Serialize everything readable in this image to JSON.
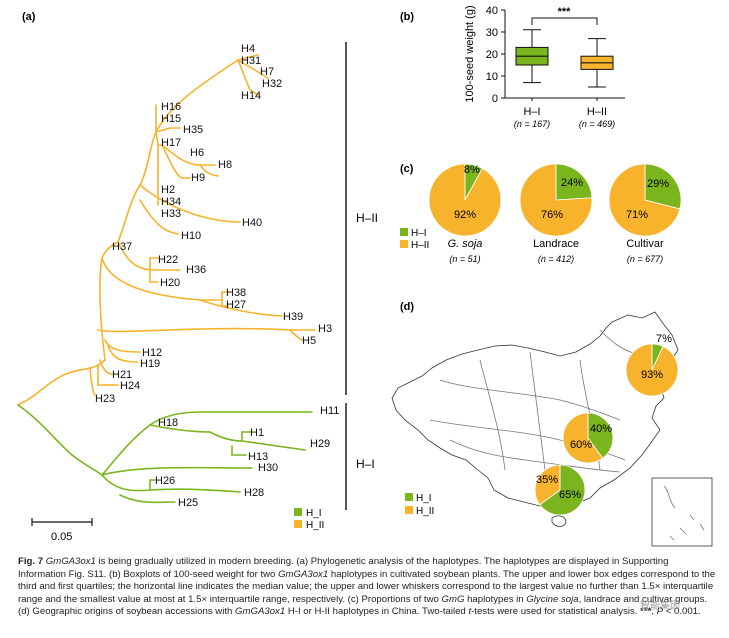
{
  "panels": {
    "a": "(a)",
    "b": "(b)",
    "c": "(c)",
    "d": "(d)"
  },
  "tree": {
    "clades": {
      "h2": "H–II",
      "h1": "H–I"
    },
    "scale_label": "0.05",
    "legend": [
      {
        "label": "H_I",
        "color": "#7ab51d"
      },
      {
        "label": "H_II",
        "color": "#f7b32b"
      }
    ],
    "leaves_orange": [
      "H4",
      "H31",
      "H7",
      "H32",
      "H14",
      "H16",
      "H15",
      "H35",
      "H17",
      "H6",
      "H8",
      "H9",
      "H2",
      "H34",
      "H33",
      "H40",
      "H10",
      "H37",
      "H22",
      "H36",
      "H20",
      "H38",
      "H27",
      "H39",
      "H3",
      "H5",
      "H12",
      "H19",
      "H21",
      "H24",
      "H23"
    ],
    "leaves_green": [
      "H11",
      "H18",
      "H1",
      "H29",
      "H13",
      "H30",
      "H26",
      "H28",
      "H25"
    ]
  },
  "chart_data": [
    {
      "type": "box",
      "ylabel": "100-seed weight (g)",
      "ylim": [
        0,
        40
      ],
      "yticks": [
        0,
        10,
        20,
        30,
        40
      ],
      "categories": [
        "H–I",
        "H–II"
      ],
      "n_labels": [
        "(n = 167)",
        "(n = 469)"
      ],
      "boxes": [
        {
          "name": "H–I",
          "whisker_low": 7,
          "q1": 15,
          "median": 19,
          "q3": 23,
          "whisker_high": 31,
          "color": "#7ab51d"
        },
        {
          "name": "H–II",
          "whisker_low": 5,
          "q1": 13,
          "median": 16,
          "q3": 19,
          "whisker_high": 27,
          "color": "#f7b32b"
        }
      ],
      "significance": "***"
    },
    {
      "type": "pie",
      "groups": [
        {
          "name": "G. soja",
          "n": "(n = 51)",
          "slices": [
            {
              "label": "H–I",
              "value": 8,
              "text": "8%"
            },
            {
              "label": "H–II",
              "value": 92,
              "text": "92%"
            }
          ]
        },
        {
          "name": "Landrace",
          "n": "(n = 412)",
          "slices": [
            {
              "label": "H–I",
              "value": 24,
              "text": "24%"
            },
            {
              "label": "H–II",
              "value": 76,
              "text": "76%"
            }
          ]
        },
        {
          "name": "Cultivar",
          "n": "(n = 677)",
          "slices": [
            {
              "label": "H–I",
              "value": 29,
              "text": "29%"
            },
            {
              "label": "H–II",
              "value": 71,
              "text": "71%"
            }
          ]
        }
      ],
      "legend": [
        "H–I",
        "H–II"
      ],
      "colors": {
        "H–I": "#7ab51d",
        "H–II": "#f7b32b"
      }
    },
    {
      "type": "pie",
      "map_pies": [
        {
          "region": "north-east",
          "slices": [
            {
              "label": "H_I",
              "value": 7,
              "text": "7%"
            },
            {
              "label": "H_II",
              "value": 93,
              "text": "93%"
            }
          ]
        },
        {
          "region": "central",
          "slices": [
            {
              "label": "H_I",
              "value": 40,
              "text": "40%"
            },
            {
              "label": "H_II",
              "value": 60,
              "text": "60%"
            }
          ]
        },
        {
          "region": "south",
          "slices": [
            {
              "label": "H_I",
              "value": 65,
              "text": "65%"
            },
            {
              "label": "H_II",
              "value": 35,
              "text": "35%"
            }
          ]
        }
      ],
      "legend": [
        "H_I",
        "H_II"
      ]
    }
  ],
  "caption": {
    "figno": "Fig. 7",
    "gene": "GmGA3ox1",
    "t1": " is being gradually utilized in modern breeding. (a) Phylogenetic analysis of the haplotypes. The haplotypes are displayed in Supporting Information Fig. S11. (b) Boxplots of 100-seed weight for two ",
    "t2": " haplotypes in cultivated soybean plants. The upper and lower box edges correspond to the third and first quartiles; the horizontal line indicates the median value; the upper and lower whiskers correspond to the largest value no further than 1.5× interquartile range and the smallest value at most at 1.5× interquartile range, respectively. (c) Proportions of two ",
    "gene_short": "GmG",
    "t3": "  haplotypes in ",
    "species": "Glycine soja",
    "t4": ", landrace and cultivar groups. (d) Geographic origins of soybean accessions with ",
    "t5": " H-I or H-II haplotypes in China. Two-tailed ",
    "t6": "-tests were used for statistical analysis. ",
    "stars": "***",
    "t7": ", ",
    "p": "P",
    "t8": " < 0.001."
  },
  "watermark": "智能集因"
}
